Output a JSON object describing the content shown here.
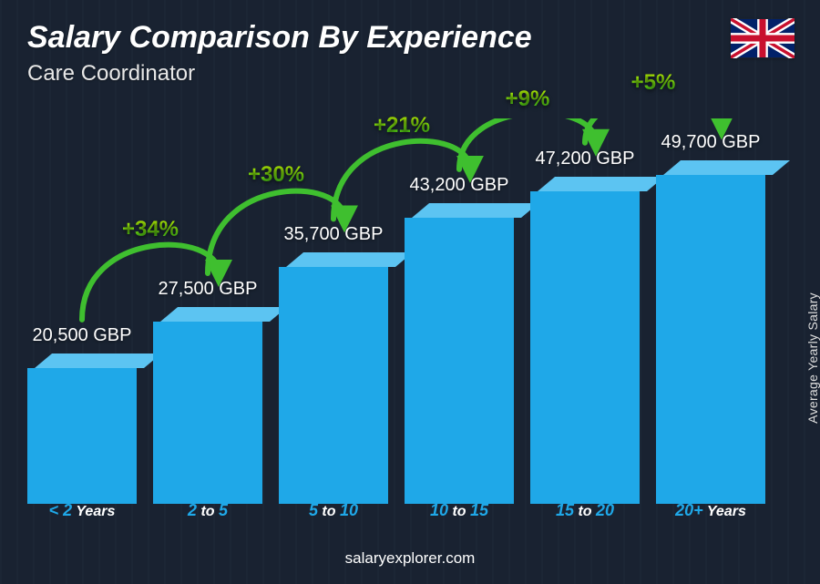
{
  "title": "Salary Comparison By Experience",
  "subtitle": "Care Coordinator",
  "ylabel": "Average Yearly Salary",
  "footer": "salaryexplorer.com",
  "flag": "uk",
  "chart": {
    "type": "bar",
    "max_value": 55000,
    "bar_front_color": "#1fa8e8",
    "bar_top_color": "#5cc4f2",
    "background_overlay": "rgba(20,30,45,0.78)",
    "category_color": "#1fa8e8",
    "category_accent_color": "#ffffff",
    "arc_stroke": "#3fbf2f",
    "arc_stroke_width": 6,
    "pct_gradient_from": "#d3ff00",
    "pct_gradient_to": "#2bcf1f",
    "value_fontsize": 20,
    "title_fontsize": 34,
    "subtitle_fontsize": 24,
    "pct_fontsize": 24,
    "category_fontsize": 18,
    "bars": [
      {
        "category_pre": "< 2",
        "category_post": " Years",
        "value": 20500,
        "label": "20,500 GBP"
      },
      {
        "category_pre": "2",
        "category_mid": " to ",
        "category_post": "5",
        "value": 27500,
        "label": "27,500 GBP",
        "pct": "+34%"
      },
      {
        "category_pre": "5",
        "category_mid": " to ",
        "category_post": "10",
        "value": 35700,
        "label": "35,700 GBP",
        "pct": "+30%"
      },
      {
        "category_pre": "10",
        "category_mid": " to ",
        "category_post": "15",
        "value": 43200,
        "label": "43,200 GBP",
        "pct": "+21%"
      },
      {
        "category_pre": "15",
        "category_mid": " to ",
        "category_post": "20",
        "value": 47200,
        "label": "47,200 GBP",
        "pct": "+9%"
      },
      {
        "category_pre": "20+",
        "category_post": " Years",
        "value": 49700,
        "label": "49,700 GBP",
        "pct": "+5%"
      }
    ]
  }
}
